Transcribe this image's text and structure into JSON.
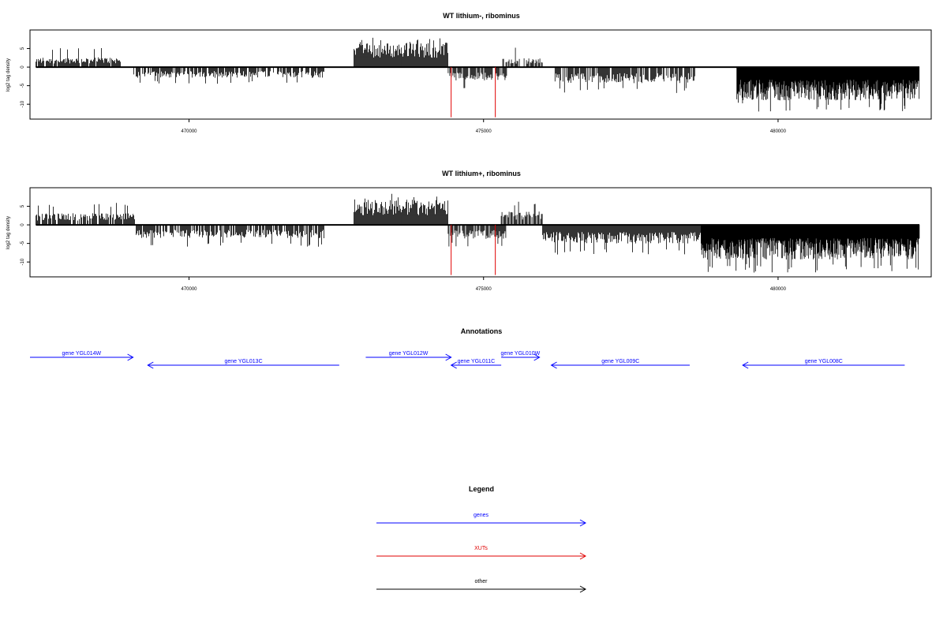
{
  "chart_data": [
    {
      "type": "bar",
      "title": "WT lithium-, ribominus",
      "xlabel": "",
      "ylabel": "log2 tag density",
      "xlim": [
        467300,
        482600
      ],
      "ylim": [
        -14,
        10
      ],
      "xticks": [
        470000,
        475000,
        480000
      ],
      "xtick_labels": [
        "470000",
        "475000",
        "480000"
      ],
      "yticks": [
        5,
        0,
        -5,
        -10
      ],
      "ytick_labels": [
        "5",
        "0",
        "-5",
        "-10"
      ],
      "bar_color": "#000000",
      "segments": [
        {
          "strand": "+",
          "start": 467400,
          "end": 468850,
          "typical": 2.2,
          "max": 5.5
        },
        {
          "strand": "-",
          "start": 469050,
          "end": 472300,
          "typical": -2.4,
          "max": -4.5
        },
        {
          "strand": "+",
          "start": 472800,
          "end": 474400,
          "typical": 5.5,
          "max": 8.0
        },
        {
          "strand": "-",
          "start": 474400,
          "end": 475400,
          "typical": -3.0,
          "max": -6.0
        },
        {
          "strand": "+",
          "start": 475300,
          "end": 476000,
          "typical": 2.0,
          "max": 5.5
        },
        {
          "strand": "-",
          "start": 476200,
          "end": 478600,
          "typical": -3.6,
          "max": -7.0
        },
        {
          "strand": "-",
          "start": 479300,
          "end": 482400,
          "typical": -7.5,
          "max": -12.0
        }
      ],
      "xut_markers": [
        474450,
        475200
      ],
      "xut_marker_depth": -13.5,
      "marker_color": "#e00000"
    },
    {
      "type": "bar",
      "title": "WT lithium+, ribominus",
      "xlabel": "",
      "ylabel": "log2 tag density",
      "xlim": [
        467300,
        482600
      ],
      "ylim": [
        -14,
        10
      ],
      "xticks": [
        470000,
        475000,
        480000
      ],
      "xtick_labels": [
        "470000",
        "475000",
        "480000"
      ],
      "yticks": [
        5,
        0,
        -5,
        -10
      ],
      "ytick_labels": [
        "5",
        "0",
        "-5",
        "-10"
      ],
      "bar_color": "#000000",
      "segments": [
        {
          "strand": "+",
          "start": 467400,
          "end": 469100,
          "typical": 2.6,
          "max": 6.0
        },
        {
          "strand": "-",
          "start": 469100,
          "end": 472300,
          "typical": -3.0,
          "max": -6.0
        },
        {
          "strand": "+",
          "start": 472800,
          "end": 474400,
          "typical": 5.8,
          "max": 8.5
        },
        {
          "strand": "-",
          "start": 474400,
          "end": 475400,
          "typical": -3.2,
          "max": -6.0
        },
        {
          "strand": "+",
          "start": 475300,
          "end": 476000,
          "typical": 3.0,
          "max": 6.5
        },
        {
          "strand": "-",
          "start": 476000,
          "end": 478700,
          "typical": -4.2,
          "max": -8.0
        },
        {
          "strand": "-",
          "start": 478700,
          "end": 482400,
          "typical": -7.8,
          "max": -13.0
        }
      ],
      "xut_markers": [
        474450,
        475200
      ],
      "xut_marker_depth": -13.5,
      "marker_color": "#e00000"
    }
  ],
  "annotations": {
    "title": "Annotations",
    "color": "#0000ff",
    "genes": [
      {
        "name": "gene YGL014W",
        "start": 467000,
        "end": 469050,
        "strand": "+",
        "row": 0
      },
      {
        "name": "gene YGL013C",
        "start": 469300,
        "end": 472550,
        "strand": "-",
        "row": 1
      },
      {
        "name": "gene YGL012W",
        "start": 473000,
        "end": 474450,
        "strand": "+",
        "row": 0
      },
      {
        "name": "gene YGL011C",
        "start": 474450,
        "end": 475300,
        "strand": "-",
        "row": 1
      },
      {
        "name": "gene YGL010W",
        "start": 475300,
        "end": 475950,
        "strand": "+",
        "row": 0
      },
      {
        "name": "gene YGL009C",
        "start": 476150,
        "end": 478500,
        "strand": "-",
        "row": 1
      },
      {
        "name": "gene YGL008C",
        "start": 479400,
        "end": 482150,
        "strand": "-",
        "row": 1
      }
    ]
  },
  "legend": {
    "title": "Legend",
    "items": [
      {
        "label": "genes",
        "color": "#0000ff"
      },
      {
        "label": "XUTs",
        "color": "#e00000"
      },
      {
        "label": "other",
        "color": "#000000"
      }
    ]
  }
}
